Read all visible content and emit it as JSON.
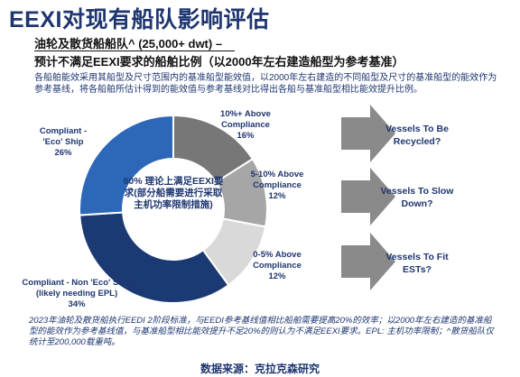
{
  "title": "EEXI对现有船队影响评估",
  "subtitle_line1": "油轮及散货船船队^ (25,000+ dwt) –",
  "subtitle_line2": "预计不满足EEXI要求的船舶比例（以2000年左右建造船型为参考基准）",
  "description": "各船舶能效采用其船型及尺寸范围内的基准船型能效值，以2000年左右建造的不同船型及尺寸的基准船型的能效作为参考基线，将各船舶所估计得到的能效值与参考基线对比得出各船与基准船型相比能效提升比例。",
  "center_note": "60% 理论上满足EEXI要求(部分船需要进行采取主机功率限制措施)",
  "chart_data": {
    "type": "pie",
    "title": "",
    "categories": [
      "10%+ Above Compliance",
      "5-10% Above Compliance",
      "0-5% Above Compliance",
      "Compliant - Non 'Eco' Ship (likely needing EPL)",
      "Compliant - 'Eco' Ship"
    ],
    "values": [
      16,
      12,
      12,
      34,
      26
    ],
    "labels": {
      "seg0": [
        "10%+ Above",
        "Compliance",
        "16%"
      ],
      "seg1": [
        "5-10% Above",
        "Compliance",
        "12%"
      ],
      "seg2": [
        "0-5% Above",
        "Compliance",
        "12%"
      ],
      "seg3": [
        "Compliant - Non 'Eco' Ship",
        "(likely needing EPL)",
        "34%"
      ],
      "seg4": [
        "Compliant -",
        "'Eco' Ship",
        "26%"
      ]
    },
    "colors": [
      "#777777",
      "#a6a6a6",
      "#d9d9d9",
      "#1b3a73",
      "#2d68b8"
    ],
    "style": "donut"
  },
  "arrows": [
    {
      "line1": "Vessels To Be",
      "line2": "Recycled?"
    },
    {
      "line1": "Vessels To Slow",
      "line2": "Down?"
    },
    {
      "line1": "Vessels To Fit",
      "line2": "ESTs?"
    }
  ],
  "footnote": "2023年油轮及散货船执行EEDI 2阶段标准，与EEDI参考基线值相比船舶需要提高20%的效率；以2000年左右建造的基准船型的能效作为参考基线值，与基准船型相比能效提升不足20%的则认为不满足EEXI要求。EPL: 主机功率限制；^散货船队仅统计至200,000载重吨。",
  "source": "数据来源：克拉克森研究"
}
